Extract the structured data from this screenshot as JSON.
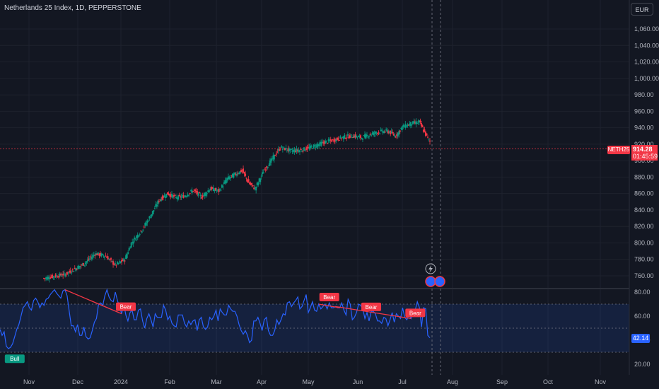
{
  "header": {
    "title": "Netherlands 25 Index, 1D, PEPPERSTONE",
    "currency_button": "EUR"
  },
  "price_tag": {
    "symbol": "NETH25",
    "price": "914.28",
    "countdown": "01:45:59"
  },
  "rsi_tag": {
    "value": "42.14"
  },
  "colors": {
    "up": "#089981",
    "down": "#f23645",
    "rsi": "#2962ff",
    "bull": "#089981",
    "bear": "#f23645"
  },
  "chart_data": {
    "type": "candlestick",
    "price_axis": {
      "ticks": [
        760,
        780,
        800,
        820,
        840,
        860,
        880,
        900,
        920,
        940,
        960,
        980,
        1000,
        1020,
        1040,
        1060
      ],
      "labels": [
        "760.00",
        "780.00",
        "800.00",
        "820.00",
        "840.00",
        "860.00",
        "880.00",
        "900.00",
        "920.00",
        "940.00",
        "960.00",
        "980.00",
        "1,000.00",
        "1,020.00",
        "1,040.00",
        "1,060.00"
      ],
      "range": [
        745,
        1075
      ]
    },
    "rsi_axis": {
      "ticks": [
        20,
        40,
        60,
        80
      ],
      "labels": [
        "20.00",
        "40.00",
        "60.00",
        "80.00"
      ],
      "range": [
        15,
        83
      ],
      "band": [
        30,
        70
      ]
    },
    "x_axis": {
      "labels": [
        "Nov",
        "Dec",
        "2024",
        "Feb",
        "Mar",
        "Apr",
        "May",
        "Jun",
        "Jul",
        "Aug",
        "Sep",
        "Oct",
        "Nov"
      ],
      "label_x": [
        41,
        110,
        171,
        240,
        306,
        370,
        436,
        506,
        569,
        640,
        710,
        775,
        849
      ]
    },
    "price_key_points": [
      [
        0,
        757
      ],
      [
        20,
        762
      ],
      [
        38,
        775
      ],
      [
        48,
        787
      ],
      [
        58,
        784
      ],
      [
        67,
        773
      ],
      [
        76,
        780
      ],
      [
        82,
        800
      ],
      [
        92,
        816
      ],
      [
        100,
        833
      ],
      [
        108,
        852
      ],
      [
        116,
        860
      ],
      [
        124,
        855
      ],
      [
        132,
        857
      ],
      [
        140,
        864
      ],
      [
        148,
        856
      ],
      [
        156,
        866
      ],
      [
        164,
        863
      ],
      [
        172,
        878
      ],
      [
        180,
        884
      ],
      [
        186,
        888
      ],
      [
        192,
        873
      ],
      [
        198,
        866
      ],
      [
        206,
        887
      ],
      [
        214,
        902
      ],
      [
        222,
        916
      ],
      [
        232,
        912
      ],
      [
        242,
        913
      ],
      [
        252,
        917
      ],
      [
        262,
        922
      ],
      [
        272,
        925
      ],
      [
        282,
        929
      ],
      [
        290,
        930
      ],
      [
        298,
        928
      ],
      [
        306,
        932
      ],
      [
        314,
        935
      ],
      [
        322,
        936
      ],
      [
        330,
        930
      ],
      [
        336,
        941
      ],
      [
        344,
        945
      ],
      [
        352,
        947
      ],
      [
        357,
        934
      ],
      [
        362,
        923
      ]
    ],
    "rsi_values": [
      49,
      44,
      47,
      35,
      33,
      34,
      37,
      43,
      49,
      53,
      60,
      67,
      69,
      72,
      67,
      65,
      73,
      75,
      72,
      67,
      71,
      69,
      74,
      75,
      78,
      80,
      82,
      79,
      77,
      75,
      81,
      82,
      77,
      64,
      52,
      52,
      47,
      53,
      44,
      44,
      51,
      43,
      41,
      42,
      48,
      55,
      58,
      70,
      71,
      69,
      77,
      82,
      76,
      73,
      72,
      80,
      73,
      68,
      62,
      70,
      61,
      56,
      63,
      65,
      57,
      57,
      65,
      66,
      56,
      50,
      58,
      62,
      57,
      51,
      62,
      59,
      59,
      59,
      69,
      65,
      57,
      60,
      54,
      52,
      51,
      61,
      61,
      61,
      54,
      51,
      56,
      53,
      56,
      57,
      48,
      57,
      59,
      51,
      49,
      51,
      59,
      57,
      60,
      65,
      56,
      66,
      63,
      61,
      61,
      69,
      66,
      64,
      64,
      60,
      53,
      48,
      45,
      48,
      44,
      38,
      40,
      56,
      56,
      59,
      54,
      48,
      57,
      59,
      48,
      44,
      44,
      48,
      57,
      53,
      57,
      62,
      61,
      71,
      72,
      68,
      71,
      73,
      76,
      66,
      68,
      73,
      78,
      63,
      67,
      72,
      65,
      64,
      70,
      66,
      68,
      70,
      66,
      71,
      67,
      67,
      68,
      67,
      67,
      71,
      65,
      61,
      74,
      70,
      57,
      59,
      63,
      70,
      69,
      66,
      58,
      63,
      56,
      64,
      64,
      62,
      56,
      56,
      54,
      59,
      58,
      52,
      57,
      63,
      55,
      62,
      60,
      58,
      67,
      59,
      57,
      61,
      58,
      63,
      65,
      72,
      67,
      51,
      67,
      66,
      44,
      42
    ],
    "annotations": [
      {
        "label": "Bull",
        "type": "bull"
      },
      {
        "label": "Bear",
        "type": "bear"
      },
      {
        "label": "Bear",
        "type": "bear"
      },
      {
        "label": "Bear",
        "type": "bear"
      },
      {
        "label": "Bear",
        "type": "bear"
      }
    ]
  }
}
